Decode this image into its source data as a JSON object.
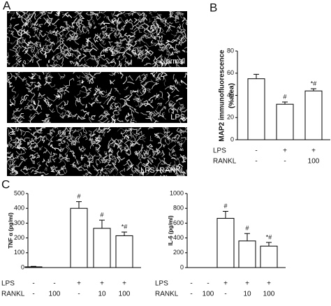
{
  "figure": {
    "panel_labels": [
      "A",
      "B",
      "C"
    ],
    "images": [
      "Normal",
      "LPS",
      "LPS+RANKL"
    ]
  },
  "chart_data": [
    {
      "type": "bar",
      "ylabel": [
        "MAP2 immunofluorescence",
        "(%area)"
      ],
      "color": "#ffffff",
      "ylim": [
        0,
        80
      ],
      "yticks": [
        0,
        20,
        40,
        60,
        80
      ],
      "values": [
        55,
        32,
        44
      ],
      "errors": [
        4,
        2,
        2
      ],
      "annotations": [
        null,
        "#",
        "*#"
      ],
      "conditions": [
        {
          "name": "LPS",
          "values": [
            "-",
            "+",
            "+"
          ]
        },
        {
          "name": "RANKL",
          "values": [
            "-",
            "-",
            "100"
          ]
        }
      ]
    },
    {
      "type": "bar",
      "ylabel": [
        "TNF α (pg/ml)"
      ],
      "color": "#ffffff",
      "ylim": [
        0,
        500
      ],
      "yticks": [
        0,
        100,
        200,
        300,
        400,
        500
      ],
      "values": [
        5,
        0,
        400,
        265,
        215
      ],
      "errors": [
        3,
        0,
        45,
        55,
        25
      ],
      "annotations": [
        null,
        null,
        "#",
        "#",
        "*#"
      ],
      "conditions": [
        {
          "name": "LPS",
          "values": [
            "-",
            "-",
            "+",
            "+",
            "+"
          ]
        },
        {
          "name": "RANKL",
          "values": [
            "-",
            "100",
            "-",
            "10",
            "100"
          ]
        }
      ]
    },
    {
      "type": "bar",
      "ylabel": [
        "IL-6 (pg/ml)"
      ],
      "color": "#ffffff",
      "ylim": [
        0,
        1000
      ],
      "yticks": [
        0,
        200,
        400,
        600,
        800,
        1000
      ],
      "values": [
        0,
        0,
        665,
        360,
        290
      ],
      "errors": [
        0,
        0,
        95,
        100,
        50
      ],
      "annotations": [
        null,
        null,
        "#",
        "#",
        "*#"
      ],
      "conditions": [
        {
          "name": "LPS",
          "values": [
            "-",
            "-",
            "+",
            "+",
            "+"
          ]
        },
        {
          "name": "RANKL",
          "values": [
            "-",
            "100",
            "-",
            "10",
            "100"
          ]
        }
      ]
    }
  ]
}
